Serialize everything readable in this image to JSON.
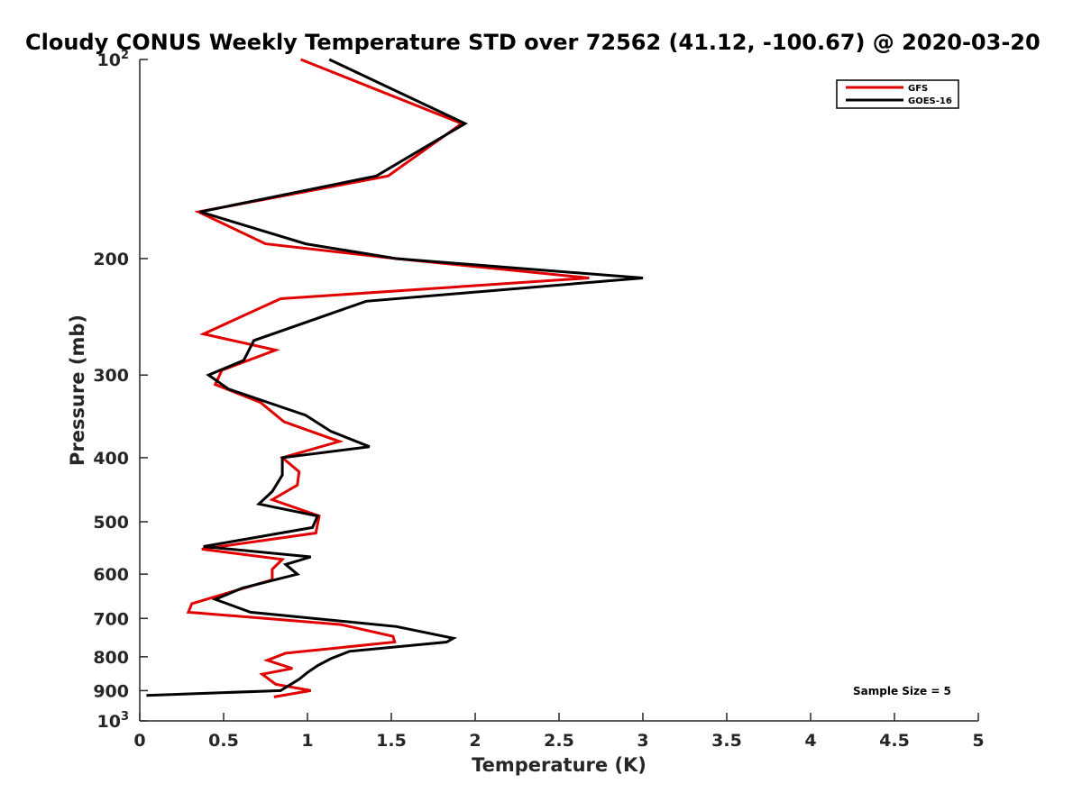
{
  "chart_data": {
    "type": "line",
    "title": "Cloudy CONUS Weekly Temperature STD over 72562 (41.12, -100.67) @ 2020-03-20",
    "xlabel": "Temperature (K)",
    "ylabel": "Pressure (mb)",
    "xlim": [
      0,
      5
    ],
    "ylim": [
      100,
      1000
    ],
    "y_scale": "log",
    "y_reversed": true,
    "x_ticks": [
      "0",
      "0.5",
      "1",
      "1.5",
      "2",
      "2.5",
      "3",
      "3.5",
      "4",
      "4.5",
      "5"
    ],
    "y_ticks": [
      {
        "value": 100,
        "base": "10",
        "exp": "2"
      },
      {
        "value": 200,
        "label": "200"
      },
      {
        "value": 300,
        "label": "300"
      },
      {
        "value": 400,
        "label": "400"
      },
      {
        "value": 500,
        "label": "500"
      },
      {
        "value": 600,
        "label": "600"
      },
      {
        "value": 700,
        "label": "700"
      },
      {
        "value": 800,
        "label": "800"
      },
      {
        "value": 900,
        "label": "900"
      },
      {
        "value": 1000,
        "base": "10",
        "exp": "3"
      }
    ],
    "legend_position": "top-right",
    "annotation": "Sample Size = 5",
    "series": [
      {
        "name": "GFS",
        "color": "#e00000",
        "points": [
          [
            0.96,
            100
          ],
          [
            1.92,
            125
          ],
          [
            1.48,
            150
          ],
          [
            0.35,
            170
          ],
          [
            0.75,
            190
          ],
          [
            1.53,
            200
          ],
          [
            2.68,
            214
          ],
          [
            0.84,
            230
          ],
          [
            0.38,
            260
          ],
          [
            0.81,
            275
          ],
          [
            0.49,
            295
          ],
          [
            0.45,
            310
          ],
          [
            0.72,
            330
          ],
          [
            0.86,
            353
          ],
          [
            1.19,
            378
          ],
          [
            0.85,
            400
          ],
          [
            0.95,
            420
          ],
          [
            0.94,
            440
          ],
          [
            0.79,
            463
          ],
          [
            1.07,
            490
          ],
          [
            1.05,
            520
          ],
          [
            0.37,
            550
          ],
          [
            0.85,
            570
          ],
          [
            0.79,
            590
          ],
          [
            0.79,
            612
          ],
          [
            0.53,
            640
          ],
          [
            0.31,
            665
          ],
          [
            0.29,
            685
          ],
          [
            1.2,
            715
          ],
          [
            1.51,
            745
          ],
          [
            1.52,
            760
          ],
          [
            0.87,
            790
          ],
          [
            0.76,
            810
          ],
          [
            0.91,
            833
          ],
          [
            0.73,
            850
          ],
          [
            0.81,
            880
          ],
          [
            1.02,
            900
          ],
          [
            0.8,
            920
          ]
        ]
      },
      {
        "name": "GOES-16",
        "color": "#000000",
        "points": [
          [
            1.13,
            100
          ],
          [
            1.94,
            125
          ],
          [
            1.41,
            150
          ],
          [
            0.36,
            170
          ],
          [
            0.99,
            190
          ],
          [
            1.53,
            200
          ],
          [
            3.0,
            214
          ],
          [
            1.35,
            232
          ],
          [
            0.68,
            266
          ],
          [
            0.62,
            285
          ],
          [
            0.41,
            300
          ],
          [
            0.53,
            315
          ],
          [
            0.99,
            345
          ],
          [
            1.14,
            365
          ],
          [
            1.37,
            385
          ],
          [
            0.85,
            400
          ],
          [
            0.85,
            425
          ],
          [
            0.79,
            450
          ],
          [
            0.71,
            470
          ],
          [
            1.06,
            490
          ],
          [
            1.03,
            510
          ],
          [
            0.38,
            545
          ],
          [
            1.02,
            565
          ],
          [
            0.87,
            580
          ],
          [
            0.94,
            600
          ],
          [
            0.61,
            630
          ],
          [
            0.45,
            655
          ],
          [
            0.66,
            685
          ],
          [
            1.53,
            720
          ],
          [
            1.87,
            750
          ],
          [
            1.83,
            760
          ],
          [
            1.25,
            785
          ],
          [
            1.14,
            805
          ],
          [
            1.06,
            825
          ],
          [
            1.0,
            845
          ],
          [
            0.95,
            865
          ],
          [
            0.84,
            900
          ],
          [
            0.04,
            915
          ]
        ]
      }
    ]
  }
}
